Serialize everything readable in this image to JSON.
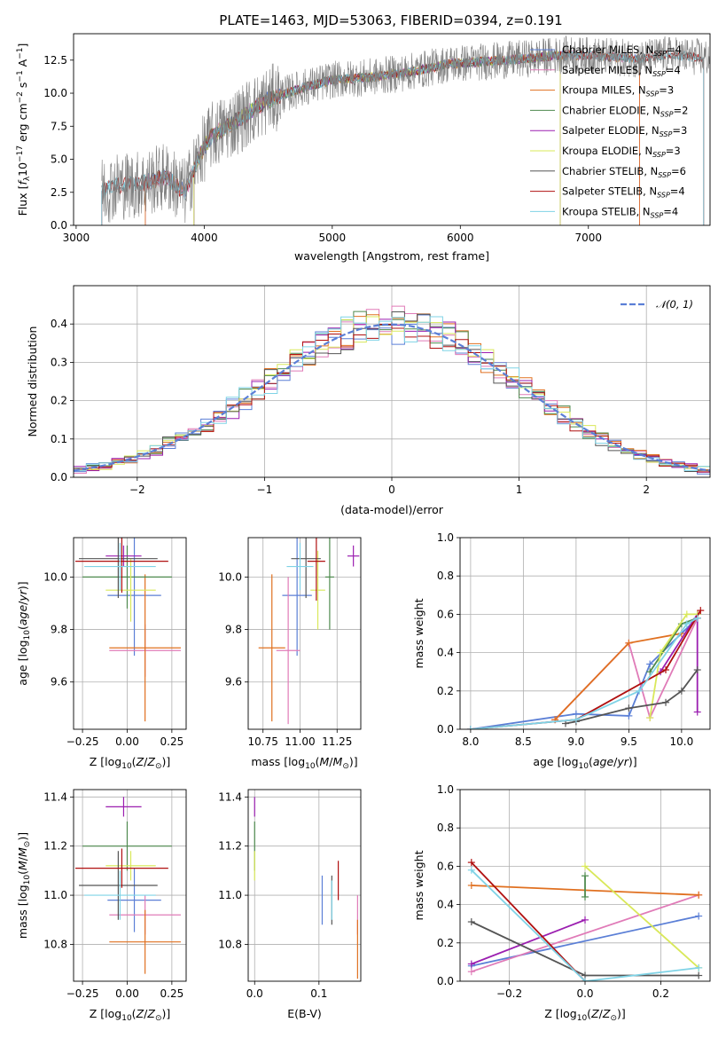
{
  "figure": {
    "title": "PLATE=1463, MJD=53063, FIBERID=0394, z=0.191"
  },
  "colors": {
    "Chabrier MILES": "#5b7fd6",
    "Salpeter MILES": "#e07bb8",
    "Kroupa MILES": "#e07020",
    "Chabrier ELODIE": "#4e8a4e",
    "Salpeter ELODIE": "#9b1fb0",
    "Kroupa ELODIE": "#d9e85a",
    "Chabrier STELIB": "#555555",
    "Salpeter STELIB": "#b01010",
    "Kroupa STELIB": "#7fd3e6",
    "gaussian": "#5b7fd6",
    "data_spectrum": "#808080"
  },
  "legend_spectrum": [
    {
      "label": "Chabrier MILES, N",
      "sub": "SSP",
      "tail": "=4",
      "key": "Chabrier MILES"
    },
    {
      "label": "Salpeter MILES, N",
      "sub": "SSP",
      "tail": "=4",
      "key": "Salpeter MILES"
    },
    {
      "label": "Kroupa MILES, N",
      "sub": "SSP",
      "tail": "=3",
      "key": "Kroupa MILES"
    },
    {
      "label": "Chabrier ELODIE, N",
      "sub": "SSP",
      "tail": "=2",
      "key": "Chabrier ELODIE"
    },
    {
      "label": "Salpeter ELODIE, N",
      "sub": "SSP",
      "tail": "=3",
      "key": "Salpeter ELODIE"
    },
    {
      "label": "Kroupa ELODIE, N",
      "sub": "SSP",
      "tail": "=3",
      "key": "Kroupa ELODIE"
    },
    {
      "label": "Chabrier STELIB, N",
      "sub": "SSP",
      "tail": "=6",
      "key": "Chabrier STELIB"
    },
    {
      "label": "Salpeter STELIB, N",
      "sub": "SSP",
      "tail": "=4",
      "key": "Salpeter STELIB"
    },
    {
      "label": "Kroupa STELIB, N",
      "sub": "SSP",
      "tail": "=4",
      "key": "Kroupa STELIB"
    }
  ],
  "legend_hist": {
    "label": "𝒩(0, 1)"
  },
  "chart_data": [
    {
      "id": "spectrum",
      "type": "line",
      "xlabel": "wavelength [Angstrom, rest frame]",
      "ylabel": "Flux [f",
      "ylabel_parts": [
        "Flux [f",
        "λ",
        "10",
        "−17",
        " erg cm",
        "−2",
        " s",
        "−1",
        " A",
        "−1",
        "]"
      ],
      "xlim": [
        2980,
        7950
      ],
      "ylim": [
        0,
        14.5
      ],
      "xticks": [
        3000,
        4000,
        5000,
        6000,
        7000
      ],
      "yticks": [
        0.0,
        2.5,
        5.0,
        7.5,
        10.0,
        12.5
      ],
      "continuum": {
        "x": [
          3200,
          3300,
          3500,
          3700,
          3850,
          3950,
          4050,
          4300,
          4500,
          4800,
          5000,
          5300,
          5600,
          5900,
          6200,
          6500,
          6800,
          7100,
          7400,
          7600,
          7900
        ],
        "y": [
          2.6,
          3.0,
          3.1,
          3.7,
          2.5,
          5.0,
          6.7,
          8.2,
          9.5,
          10.5,
          11.0,
          11.2,
          11.6,
          12.2,
          12.4,
          12.6,
          12.9,
          12.8,
          12.6,
          12.9,
          12.7
        ]
      }
    },
    {
      "id": "residuals",
      "type": "histogram",
      "xlabel": "(data-model)/error",
      "ylabel": "Normed distribution",
      "xlim": [
        -2.5,
        2.5
      ],
      "ylim": [
        0,
        0.5
      ],
      "xticks": [
        -2,
        -1,
        0,
        1,
        2
      ],
      "yticks": [
        0.0,
        0.1,
        0.2,
        0.3,
        0.4
      ],
      "series": [
        {
          "name": "𝒩(0, 1)",
          "mu": 0,
          "sigma": 1
        }
      ]
    },
    {
      "id": "age-vs-Z",
      "type": "errorbar",
      "xlabel": "Z [log10(Z/Z⊙)]",
      "ylabel": "age  [log10(age/yr)]",
      "xlim": [
        -0.3,
        0.33
      ],
      "ylim": [
        9.42,
        10.15
      ],
      "xticks": [
        -0.25,
        0.0,
        0.25
      ],
      "yticks": [
        9.6,
        9.8,
        10.0
      ],
      "points": [
        {
          "model": "Chabrier MILES",
          "x": 0.04,
          "xerr": 0.15,
          "y": 9.93,
          "yerr": 0.23
        },
        {
          "model": "Salpeter MILES",
          "x": 0.1,
          "xerr": 0.2,
          "y": 9.72,
          "yerr": 0.1
        },
        {
          "model": "Kroupa MILES",
          "x": 0.1,
          "xerr": 0.2,
          "y": 9.73,
          "yerr": 0.28
        },
        {
          "model": "Chabrier ELODIE",
          "x": 0.0,
          "xerr": 0.25,
          "y": 10.0,
          "yerr": 0.12
        },
        {
          "model": "Salpeter ELODIE",
          "x": -0.02,
          "xerr": 0.1,
          "y": 10.08,
          "yerr": 0.04
        },
        {
          "model": "Kroupa ELODIE",
          "x": 0.02,
          "xerr": 0.14,
          "y": 9.95,
          "yerr": 0.12
        },
        {
          "model": "Chabrier STELIB",
          "x": -0.05,
          "xerr": 0.22,
          "y": 10.07,
          "yerr": 0.15
        },
        {
          "model": "Salpeter STELIB",
          "x": -0.03,
          "xerr": 0.26,
          "y": 10.06,
          "yerr": 0.12
        },
        {
          "model": "Kroupa STELIB",
          "x": -0.04,
          "xerr": 0.2,
          "y": 10.04,
          "yerr": 0.09
        }
      ]
    },
    {
      "id": "age-vs-mass",
      "type": "errorbar",
      "xlabel": "mass [log10(M/M⊙)]",
      "xlim": [
        10.65,
        11.41
      ],
      "ylim": [
        9.42,
        10.15
      ],
      "xticks": [
        10.75,
        11.0,
        11.25
      ],
      "yticks": [
        9.6,
        9.8,
        10.0
      ],
      "points": [
        {
          "model": "Chabrier MILES",
          "x": 10.98,
          "xerr": 0.1,
          "y": 9.93,
          "yerr": 0.23
        },
        {
          "model": "Salpeter MILES",
          "x": 10.92,
          "xerr": 0.08,
          "y": 9.72,
          "yerr": 0.28
        },
        {
          "model": "Kroupa MILES",
          "x": 10.81,
          "xerr": 0.09,
          "y": 9.73,
          "yerr": 0.28
        },
        {
          "model": "Chabrier ELODIE",
          "x": 11.2,
          "xerr": 0.03,
          "y": 10.0,
          "yerr": 0.2
        },
        {
          "model": "Salpeter ELODIE",
          "x": 11.36,
          "xerr": 0.04,
          "y": 10.08,
          "yerr": 0.04
        },
        {
          "model": "Kroupa ELODIE",
          "x": 11.12,
          "xerr": 0.05,
          "y": 9.95,
          "yerr": 0.15
        },
        {
          "model": "Chabrier STELIB",
          "x": 11.04,
          "xerr": 0.1,
          "y": 10.07,
          "yerr": 0.15
        },
        {
          "model": "Salpeter STELIB",
          "x": 11.11,
          "xerr": 0.06,
          "y": 10.06,
          "yerr": 0.15
        },
        {
          "model": "Kroupa STELIB",
          "x": 11.0,
          "xerr": 0.09,
          "y": 10.04,
          "yerr": 0.09
        }
      ]
    },
    {
      "id": "mass-weight-vs-age",
      "type": "line",
      "xlabel": "age  [log10(age/yr)]",
      "ylabel": "mass weight",
      "xlim": [
        7.9,
        10.27
      ],
      "ylim": [
        0,
        1.0
      ],
      "xticks": [
        8.0,
        8.5,
        9.0,
        9.5,
        10.0
      ],
      "yticks": [
        0.0,
        0.2,
        0.4,
        0.6,
        0.8,
        1.0
      ],
      "series": [
        {
          "model": "Chabrier MILES",
          "x": [
            8.0,
            9.0,
            9.5,
            9.7,
            10.15
          ],
          "y": [
            0.0,
            0.08,
            0.07,
            0.34,
            0.58
          ]
        },
        {
          "model": "Salpeter MILES",
          "x": [
            8.8,
            9.5,
            9.7,
            10.15
          ],
          "y": [
            0.05,
            0.45,
            0.06,
            0.58
          ]
        },
        {
          "model": "Kroupa MILES",
          "x": [
            8.8,
            9.5,
            10.0
          ],
          "y": [
            0.05,
            0.45,
            0.5
          ]
        },
        {
          "model": "Chabrier ELODIE",
          "x": [
            9.7,
            10.0,
            10.15
          ],
          "y": [
            0.3,
            0.55,
            0.58
          ]
        },
        {
          "model": "Salpeter ELODIE",
          "x": [
            9.8,
            10.15,
            10.15
          ],
          "y": [
            0.3,
            0.6,
            0.09
          ]
        },
        {
          "model": "Kroupa ELODIE",
          "x": [
            9.7,
            9.8,
            10.05,
            10.15
          ],
          "y": [
            0.06,
            0.4,
            0.6,
            0.6
          ]
        },
        {
          "model": "Chabrier STELIB",
          "x": [
            8.9,
            9.0,
            9.5,
            9.85,
            10.0,
            10.15
          ],
          "y": [
            0.03,
            0.04,
            0.11,
            0.14,
            0.2,
            0.31
          ]
        },
        {
          "model": "Salpeter STELIB",
          "x": [
            8.0,
            9.0,
            9.85,
            10.18
          ],
          "y": [
            0.0,
            0.05,
            0.31,
            0.62
          ]
        },
        {
          "model": "Kroupa STELIB",
          "x": [
            8.0,
            9.0,
            9.6,
            10.05,
            10.15
          ],
          "y": [
            0.0,
            0.05,
            0.2,
            0.55,
            0.58
          ]
        }
      ]
    },
    {
      "id": "mass-vs-Z",
      "type": "errorbar",
      "xlabel": "Z [log10(Z/Z⊙)]",
      "ylabel": "mass [log10(M/M⊙)]",
      "xlim": [
        -0.3,
        0.33
      ],
      "ylim": [
        10.65,
        11.43
      ],
      "xticks": [
        -0.25,
        0.0,
        0.25
      ],
      "yticks": [
        10.8,
        11.0,
        11.2,
        11.4
      ],
      "points": [
        {
          "model": "Chabrier MILES",
          "x": 0.04,
          "xerr": 0.15,
          "y": 10.98,
          "yerr": 0.13
        },
        {
          "model": "Salpeter MILES",
          "x": 0.1,
          "xerr": 0.2,
          "y": 10.92,
          "yerr": 0.08
        },
        {
          "model": "Kroupa MILES",
          "x": 0.1,
          "xerr": 0.2,
          "y": 10.81,
          "yerr": 0.13
        },
        {
          "model": "Chabrier ELODIE",
          "x": 0.0,
          "xerr": 0.25,
          "y": 11.2,
          "yerr": 0.1
        },
        {
          "model": "Salpeter ELODIE",
          "x": -0.02,
          "xerr": 0.1,
          "y": 11.36,
          "yerr": 0.04
        },
        {
          "model": "Kroupa ELODIE",
          "x": 0.02,
          "xerr": 0.14,
          "y": 11.12,
          "yerr": 0.06
        },
        {
          "model": "Chabrier STELIB",
          "x": -0.05,
          "xerr": 0.22,
          "y": 11.04,
          "yerr": 0.14
        },
        {
          "model": "Salpeter STELIB",
          "x": -0.03,
          "xerr": 0.26,
          "y": 11.11,
          "yerr": 0.08
        },
        {
          "model": "Kroupa STELIB",
          "x": -0.04,
          "xerr": 0.2,
          "y": 11.0,
          "yerr": 0.1
        }
      ]
    },
    {
      "id": "mass-vs-ebv",
      "type": "errorbar",
      "xlabel": "E(B-V)",
      "xlim": [
        -0.01,
        0.165
      ],
      "ylim": [
        10.65,
        11.43
      ],
      "xticks": [
        0.0,
        0.1
      ],
      "yticks": [
        10.8,
        11.0,
        11.2,
        11.4
      ],
      "points": [
        {
          "model": "Chabrier MILES",
          "x": 0.105,
          "y": 10.98,
          "yerr": 0.1
        },
        {
          "model": "Salpeter MILES",
          "x": 0.16,
          "y": 10.92,
          "yerr": 0.08
        },
        {
          "model": "Kroupa MILES",
          "x": 0.16,
          "y": 10.78,
          "yerr": 0.12
        },
        {
          "model": "Chabrier ELODIE",
          "x": 0.0,
          "y": 11.2,
          "yerr": 0.1
        },
        {
          "model": "Salpeter ELODIE",
          "x": 0.0,
          "y": 11.36,
          "yerr": 0.04
        },
        {
          "model": "Kroupa ELODIE",
          "x": 0.0,
          "y": 11.12,
          "yerr": 0.06
        },
        {
          "model": "Chabrier STELIB",
          "x": 0.12,
          "y": 10.98,
          "yerr": 0.1
        },
        {
          "model": "Salpeter STELIB",
          "x": 0.13,
          "y": 11.06,
          "yerr": 0.08
        },
        {
          "model": "Kroupa STELIB",
          "x": 0.12,
          "y": 10.98,
          "yerr": 0.08
        }
      ]
    },
    {
      "id": "mass-weight-vs-Z",
      "type": "line",
      "xlabel": "Z [log10(Z/Z⊙)]",
      "ylabel": "mass weight",
      "xlim": [
        -0.33,
        0.33
      ],
      "ylim": [
        0,
        1.0
      ],
      "xticks": [
        -0.2,
        0.0,
        0.2
      ],
      "yticks": [
        0.0,
        0.2,
        0.4,
        0.6,
        0.8,
        1.0
      ],
      "series": [
        {
          "model": "Chabrier MILES",
          "x": [
            -0.3,
            0.3
          ],
          "y": [
            0.08,
            0.34
          ]
        },
        {
          "model": "Salpeter MILES",
          "x": [
            -0.3,
            0.3
          ],
          "y": [
            0.05,
            0.45
          ]
        },
        {
          "model": "Kroupa MILES",
          "x": [
            -0.3,
            0.3
          ],
          "y": [
            0.5,
            0.45
          ]
        },
        {
          "model": "Chabrier ELODIE",
          "x": [
            0.0,
            0.0
          ],
          "y": [
            0.55,
            0.44
          ]
        },
        {
          "model": "Salpeter ELODIE",
          "x": [
            -0.3,
            0.0
          ],
          "y": [
            0.09,
            0.32
          ]
        },
        {
          "model": "Kroupa ELODIE",
          "x": [
            0.0,
            0.3
          ],
          "y": [
            0.6,
            0.07
          ]
        },
        {
          "model": "Chabrier STELIB",
          "x": [
            -0.3,
            0.0,
            0.3
          ],
          "y": [
            0.31,
            0.03,
            0.03
          ]
        },
        {
          "model": "Salpeter STELIB",
          "x": [
            -0.3,
            0.0
          ],
          "y": [
            0.62,
            0.0
          ]
        },
        {
          "model": "Kroupa STELIB",
          "x": [
            -0.3,
            0.0,
            0.3
          ],
          "y": [
            0.58,
            0.0,
            0.07
          ]
        }
      ]
    }
  ]
}
